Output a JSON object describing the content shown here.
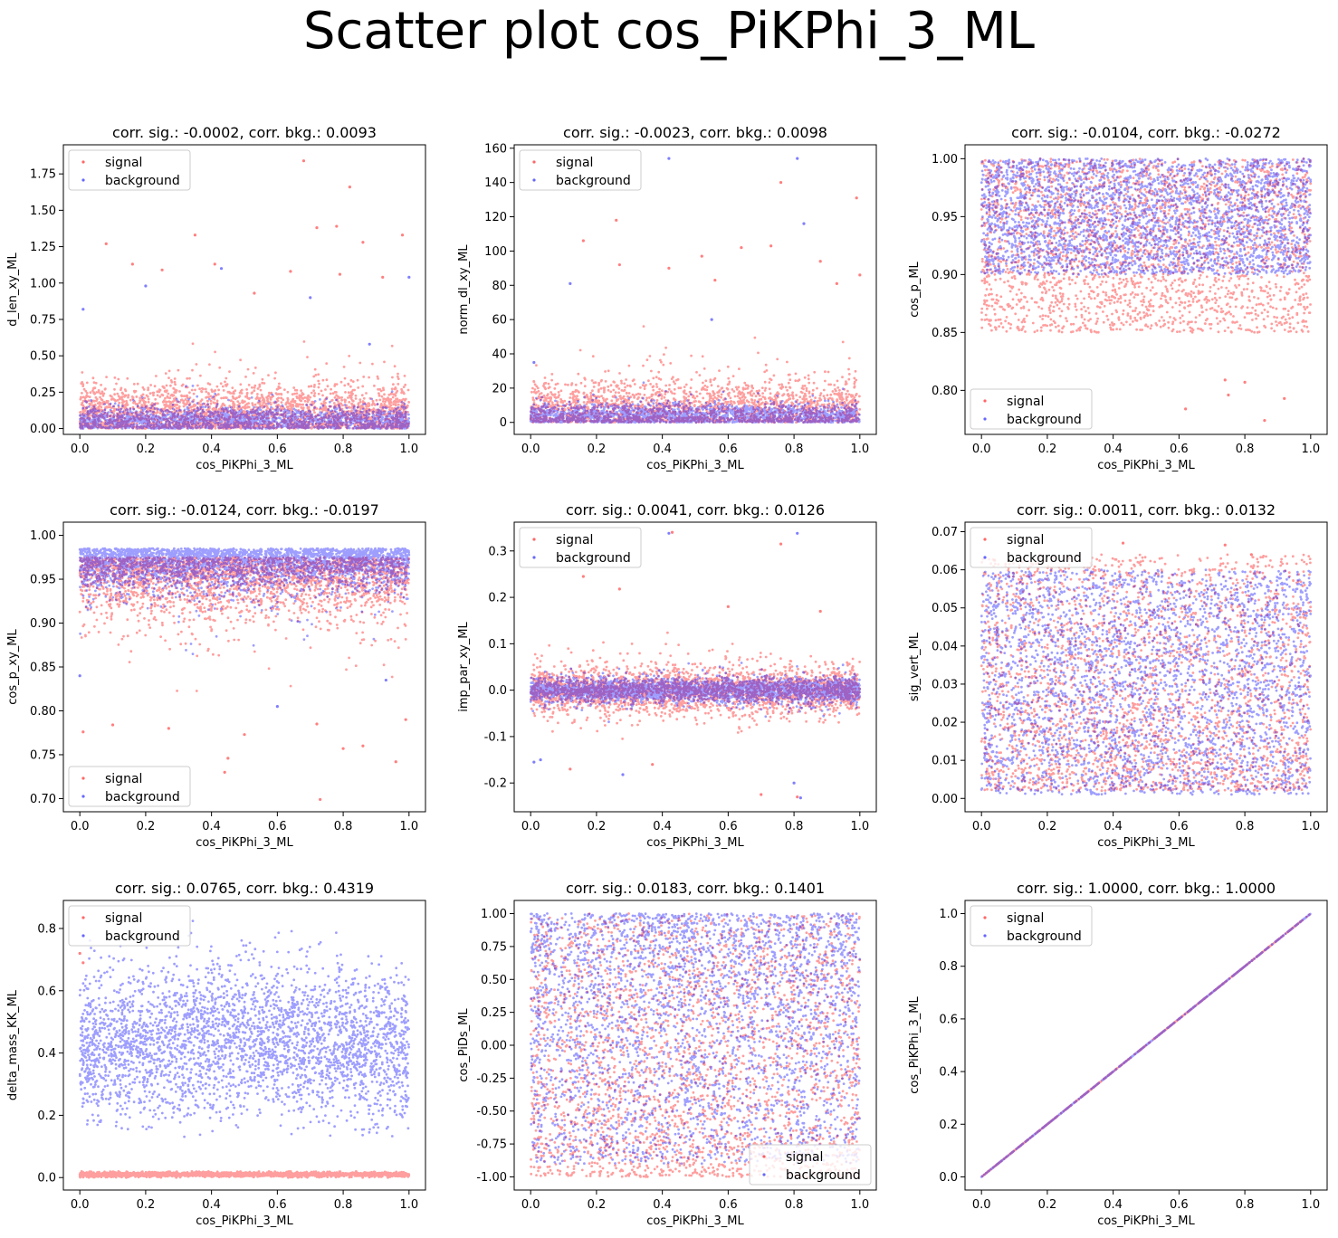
{
  "figure": {
    "title": "Scatter plot cos_PiKPhi_3_ML"
  },
  "colors": {
    "signal": "#ff0000",
    "background": "#0000ff"
  },
  "chart_data": [
    {
      "type": "scatter",
      "title": "corr. sig.: -0.0002, corr. bkg.: 0.0093",
      "xlabel": "cos_PiKPhi_3_ML",
      "ylabel": "d_len_xy_ML",
      "xlim": [
        -0.05,
        1.05
      ],
      "ylim": [
        -0.04,
        1.95
      ],
      "xticks": [
        0.0,
        0.2,
        0.4,
        0.6,
        0.8,
        1.0
      ],
      "yticks": [
        0.0,
        0.25,
        0.5,
        0.75,
        1.0,
        1.25,
        1.5,
        1.75
      ],
      "legend": "upper left",
      "series": [
        {
          "name": "signal",
          "color": "#ff0000",
          "band": {
            "center": 0.1,
            "spread": 0.12,
            "lo": 0.0,
            "hi": 0.6
          },
          "outliers": [
            [
              0.68,
              1.84
            ],
            [
              0.82,
              1.66
            ],
            [
              0.08,
              1.27
            ],
            [
              0.35,
              1.33
            ],
            [
              0.78,
              1.39
            ],
            [
              0.72,
              1.38
            ],
            [
              0.86,
              1.28
            ],
            [
              0.98,
              1.33
            ],
            [
              0.16,
              1.13
            ],
            [
              0.25,
              1.09
            ],
            [
              0.41,
              1.13
            ],
            [
              0.64,
              1.08
            ],
            [
              0.92,
              1.04
            ],
            [
              0.79,
              1.06
            ],
            [
              0.53,
              0.93
            ]
          ]
        },
        {
          "name": "background",
          "color": "#0000ff",
          "band": {
            "center": 0.06,
            "spread": 0.05,
            "lo": 0.0,
            "hi": 0.3
          },
          "outliers": [
            [
              0.2,
              0.98
            ],
            [
              1.0,
              1.04
            ],
            [
              0.01,
              0.82
            ],
            [
              0.43,
              1.1
            ],
            [
              0.7,
              0.9
            ],
            [
              0.88,
              0.58
            ]
          ]
        }
      ]
    },
    {
      "type": "scatter",
      "title": "corr. sig.: -0.0023, corr. bkg.: 0.0098",
      "xlabel": "cos_PiKPhi_3_ML",
      "ylabel": "norm_dl_xy_ML",
      "xlim": [
        -0.05,
        1.05
      ],
      "ylim": [
        -7,
        162
      ],
      "xticks": [
        0.0,
        0.2,
        0.4,
        0.6,
        0.8,
        1.0
      ],
      "yticks": [
        0,
        20,
        40,
        60,
        80,
        100,
        120,
        140,
        160
      ],
      "legend": "upper left",
      "series": [
        {
          "name": "signal",
          "color": "#ff0000",
          "band": {
            "center": 8,
            "spread": 10,
            "lo": 0,
            "hi": 60
          },
          "outliers": [
            [
              0.16,
              106
            ],
            [
              0.26,
              118
            ],
            [
              0.76,
              140
            ],
            [
              0.99,
              131
            ],
            [
              0.88,
              94
            ],
            [
              0.73,
              103
            ],
            [
              0.52,
              97
            ],
            [
              0.64,
              102
            ],
            [
              1.0,
              86
            ],
            [
              0.42,
              90
            ],
            [
              0.27,
              92
            ],
            [
              0.56,
              83
            ],
            [
              0.93,
              81
            ]
          ]
        },
        {
          "name": "background",
          "color": "#0000ff",
          "band": {
            "center": 4,
            "spread": 4,
            "lo": 0,
            "hi": 25
          },
          "outliers": [
            [
              0.42,
              154
            ],
            [
              0.81,
              154
            ],
            [
              0.83,
              116
            ],
            [
              0.12,
              81
            ],
            [
              0.01,
              35
            ],
            [
              0.55,
              60
            ]
          ]
        }
      ]
    },
    {
      "type": "scatter",
      "title": "corr. sig.: -0.0104, corr. bkg.: -0.0272",
      "xlabel": "cos_PiKPhi_3_ML",
      "ylabel": "cos_p_ML",
      "xlim": [
        -0.05,
        1.05
      ],
      "ylim": [
        0.762,
        1.012
      ],
      "xticks": [
        0.0,
        0.2,
        0.4,
        0.6,
        0.8,
        1.0
      ],
      "yticks": [
        0.8,
        0.85,
        0.9,
        0.95,
        1.0
      ],
      "legend": "lower left",
      "series": [
        {
          "name": "signal",
          "color": "#ff0000",
          "band": {
            "uniform": [
              0.85,
              1.0
            ]
          },
          "outliers": [
            [
              0.74,
              0.809
            ],
            [
              0.8,
              0.807
            ],
            [
              0.75,
              0.796
            ],
            [
              0.92,
              0.793
            ],
            [
              0.62,
              0.784
            ],
            [
              0.86,
              0.774
            ]
          ]
        },
        {
          "name": "background",
          "color": "#0000ff",
          "band": {
            "uniform": [
              0.9,
              1.0
            ]
          },
          "outliers": []
        }
      ]
    },
    {
      "type": "scatter",
      "title": "corr. sig.: -0.0124, corr. bkg.: -0.0197",
      "xlabel": "cos_PiKPhi_3_ML",
      "ylabel": "cos_p_xy_ML",
      "xlim": [
        -0.05,
        1.05
      ],
      "ylim": [
        0.685,
        1.015
      ],
      "xticks": [
        0.0,
        0.2,
        0.4,
        0.6,
        0.8,
        1.0
      ],
      "yticks": [
        0.7,
        0.75,
        0.8,
        0.85,
        0.9,
        0.95,
        1.0
      ],
      "legend": "lower left",
      "series": [
        {
          "name": "signal",
          "color": "#ff0000",
          "band": {
            "center": 0.975,
            "spread": 0.035,
            "lo": 0.74,
            "hi": 1.0,
            "oneSided": true
          },
          "outliers": [
            [
              0.73,
              0.699
            ],
            [
              0.44,
              0.73
            ],
            [
              0.45,
              0.746
            ],
            [
              0.01,
              0.776
            ],
            [
              0.1,
              0.784
            ],
            [
              0.27,
              0.78
            ],
            [
              0.8,
              0.757
            ],
            [
              0.96,
              0.742
            ],
            [
              0.72,
              0.785
            ],
            [
              0.86,
              0.76
            ],
            [
              0.99,
              0.79
            ],
            [
              0.5,
              0.773
            ]
          ]
        },
        {
          "name": "background",
          "color": "#0000ff",
          "band": {
            "center": 0.985,
            "spread": 0.025,
            "lo": 0.83,
            "hi": 1.0,
            "oneSided": true
          },
          "outliers": [
            [
              0.0,
              0.84
            ],
            [
              0.6,
              0.805
            ],
            [
              0.93,
              0.835
            ]
          ]
        }
      ]
    },
    {
      "type": "scatter",
      "title": "corr. sig.: 0.0041, corr. bkg.: 0.0126",
      "xlabel": "cos_PiKPhi_3_ML",
      "ylabel": "imp_par_xy_ML",
      "xlim": [
        -0.05,
        1.05
      ],
      "ylim": [
        -0.262,
        0.362
      ],
      "xticks": [
        0.0,
        0.2,
        0.4,
        0.6,
        0.8,
        1.0
      ],
      "yticks": [
        -0.2,
        -0.1,
        0.0,
        0.1,
        0.2,
        0.3
      ],
      "legend": "upper left",
      "series": [
        {
          "name": "signal",
          "color": "#ff0000",
          "band": {
            "center": 0.0,
            "spread": 0.028,
            "lo": -0.2,
            "hi": 0.2
          },
          "outliers": [
            [
              0.43,
              0.34
            ],
            [
              0.76,
              0.315
            ],
            [
              0.16,
              0.245
            ],
            [
              0.27,
              0.218
            ],
            [
              0.7,
              -0.225
            ],
            [
              0.81,
              -0.23
            ],
            [
              0.12,
              -0.17
            ],
            [
              0.37,
              -0.16
            ],
            [
              0.6,
              0.18
            ],
            [
              0.88,
              0.17
            ]
          ]
        },
        {
          "name": "background",
          "color": "#0000ff",
          "band": {
            "center": 0.0,
            "spread": 0.014,
            "lo": -0.15,
            "hi": 0.15
          },
          "outliers": [
            [
              0.42,
              0.338
            ],
            [
              0.81,
              0.338
            ],
            [
              0.82,
              -0.232
            ],
            [
              0.28,
              -0.182
            ],
            [
              0.8,
              -0.2
            ],
            [
              0.01,
              -0.155
            ],
            [
              0.03,
              -0.15
            ]
          ]
        }
      ]
    },
    {
      "type": "scatter",
      "title": "corr. sig.: 0.0011, corr. bkg.: 0.0132",
      "xlabel": "cos_PiKPhi_3_ML",
      "ylabel": "sig_vert_ML",
      "xlim": [
        -0.05,
        1.05
      ],
      "ylim": [
        -0.0035,
        0.0725
      ],
      "xticks": [
        0.0,
        0.2,
        0.4,
        0.6,
        0.8,
        1.0
      ],
      "yticks": [
        0.0,
        0.01,
        0.02,
        0.03,
        0.04,
        0.05,
        0.06,
        0.07
      ],
      "legend": "upper left",
      "series": [
        {
          "name": "signal",
          "color": "#ff0000",
          "band": {
            "uniform": [
              0.002,
              0.064
            ],
            "lowBias": true
          },
          "outliers": [
            [
              0.74,
              0.0665
            ],
            [
              0.43,
              0.067
            ],
            [
              0.82,
              0.064
            ],
            [
              0.04,
              0.0625
            ]
          ]
        },
        {
          "name": "background",
          "color": "#0000ff",
          "band": {
            "uniform": [
              0.001,
              0.06
            ]
          },
          "outliers": []
        }
      ]
    },
    {
      "type": "scatter",
      "title": "corr. sig.: 0.0765, corr. bkg.: 0.4319",
      "xlabel": "cos_PiKPhi_3_ML",
      "ylabel": "delta_mass_KK_ML",
      "xlim": [
        -0.05,
        1.05
      ],
      "ylim": [
        -0.04,
        0.89
      ],
      "xticks": [
        0.0,
        0.2,
        0.4,
        0.6,
        0.8,
        1.0
      ],
      "yticks": [
        0.0,
        0.2,
        0.4,
        0.6,
        0.8
      ],
      "legend": "upper left",
      "series": [
        {
          "name": "signal",
          "color": "#ff0000",
          "band": {
            "center": 0.01,
            "spread": 0.004,
            "lo": 0.0,
            "hi": 0.02
          },
          "outliers": [
            [
              0.0,
              0.72
            ],
            [
              0.01,
              0.69
            ]
          ]
        },
        {
          "name": "background",
          "color": "#0000ff",
          "band": {
            "center": 0.4,
            "spread": 0.12,
            "lo": 0.13,
            "hi": 0.85,
            "cloud": true
          },
          "outliers": []
        }
      ]
    },
    {
      "type": "scatter",
      "title": "corr. sig.: 0.0183, corr. bkg.: 0.1401",
      "xlabel": "cos_PiKPhi_3_ML",
      "ylabel": "cos_PiDs_ML",
      "xlim": [
        -0.05,
        1.05
      ],
      "ylim": [
        -1.1,
        1.1
      ],
      "xticks": [
        0.0,
        0.2,
        0.4,
        0.6,
        0.8,
        1.0
      ],
      "yticks": [
        -1.0,
        -0.75,
        -0.5,
        -0.25,
        0.0,
        0.25,
        0.5,
        0.75,
        1.0
      ],
      "legend": "lower right",
      "series": [
        {
          "name": "signal",
          "color": "#ff0000",
          "band": {
            "uniform": [
              -1.0,
              1.0
            ],
            "lowBias": true
          },
          "outliers": []
        },
        {
          "name": "background",
          "color": "#0000ff",
          "band": {
            "uniform": [
              -0.9,
              1.0
            ],
            "highBias": true
          },
          "outliers": []
        }
      ]
    },
    {
      "type": "scatter",
      "title": "corr. sig.: 1.0000, corr. bkg.: 1.0000",
      "xlabel": "cos_PiKPhi_3_ML",
      "ylabel": "cos_PiKPhi_3_ML",
      "xlim": [
        -0.05,
        1.05
      ],
      "ylim": [
        -0.05,
        1.05
      ],
      "xticks": [
        0.0,
        0.2,
        0.4,
        0.6,
        0.8,
        1.0
      ],
      "yticks": [
        0.0,
        0.2,
        0.4,
        0.6,
        0.8,
        1.0
      ],
      "legend": "upper left",
      "series": [
        {
          "name": "signal",
          "color": "#ff0000",
          "band": {
            "diagonal": true
          },
          "outliers": []
        },
        {
          "name": "background",
          "color": "#0000ff",
          "band": {
            "diagonal": true
          },
          "outliers": []
        }
      ]
    }
  ]
}
